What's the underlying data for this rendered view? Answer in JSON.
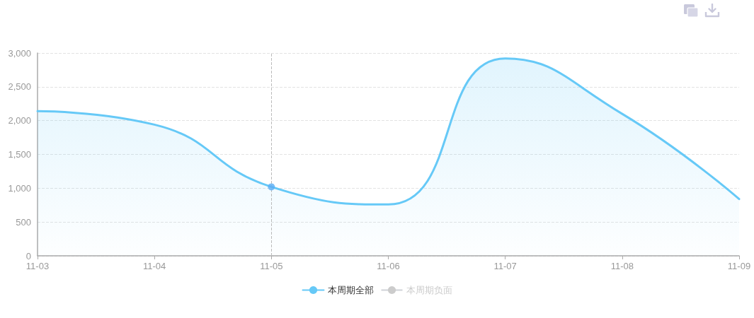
{
  "chart_data": {
    "type": "area",
    "categories": [
      "11-03",
      "11-04",
      "11-05",
      "11-06",
      "11-07",
      "11-08",
      "11-09"
    ],
    "series": [
      {
        "name": "本周期全部",
        "color": "#66c9f7",
        "marker": "none",
        "values": [
          2140,
          1940,
          1020,
          760,
          2920,
          2100,
          840
        ]
      },
      {
        "name": "本周期负面",
        "values": [
          null,
          null,
          null,
          null,
          null,
          null,
          null
        ]
      },
      {
        "type": "scatter",
        "marker": "circle",
        "x": [
          "11-05"
        ],
        "values": [
          1020
        ],
        "color": "#5aaef5"
      }
    ],
    "ylim": [
      0,
      3000
    ],
    "yticks": [
      0,
      500,
      {
        "value": 1000,
        "label": "1,000"
      },
      {
        "value": 1500,
        "label": "1,500"
      },
      {
        "value": 2000,
        "label": "2,000"
      },
      {
        "value": 2500,
        "label": "2,500"
      },
      {
        "value": 3000,
        "label": "3,000"
      }
    ],
    "grid": "y",
    "legend": "bottom",
    "ref_lines": [
      {
        "axis": "x",
        "value": "11-05",
        "color": "#bbbbbb",
        "line_style": "dashed"
      }
    ]
  }
}
